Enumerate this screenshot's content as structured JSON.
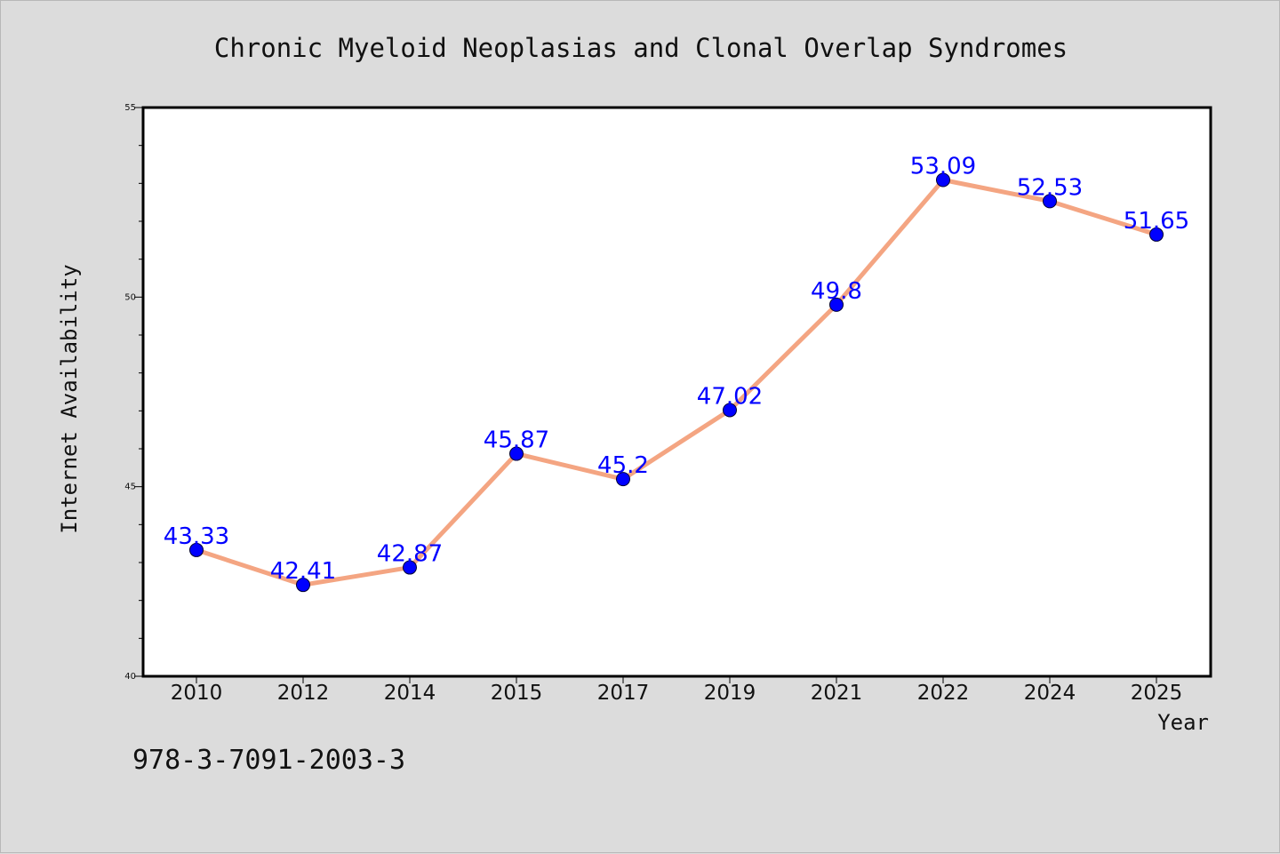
{
  "chart_data": {
    "type": "line",
    "title": "Chronic Myeloid Neoplasias and Clonal Overlap Syndromes",
    "xlabel": "Year",
    "ylabel": "Internet Availability",
    "categories": [
      "2010",
      "2012",
      "2014",
      "2015",
      "2017",
      "2019",
      "2021",
      "2022",
      "2024",
      "2025"
    ],
    "series": [
      {
        "values": [
          43.33,
          42.41,
          42.87,
          45.87,
          45.2,
          47.02,
          49.8,
          53.09,
          52.53,
          51.65
        ]
      }
    ],
    "data_labels": [
      "43.33",
      "42.41",
      "42.87",
      "45.87",
      "45.2",
      "47.02",
      "49.8",
      "53.09",
      "52.53",
      "51.65"
    ],
    "ylim": [
      40,
      55
    ],
    "y_ticks": [
      "40",
      "45",
      "50",
      "55"
    ],
    "grid": false,
    "line_color": "#f4a582",
    "marker_color": "#0000ff",
    "label_color": "#0000ff",
    "background": "#dcdcdc",
    "plot_background": "#ffffff"
  },
  "footer": {
    "isbn": "978-3-7091-2003-3"
  }
}
